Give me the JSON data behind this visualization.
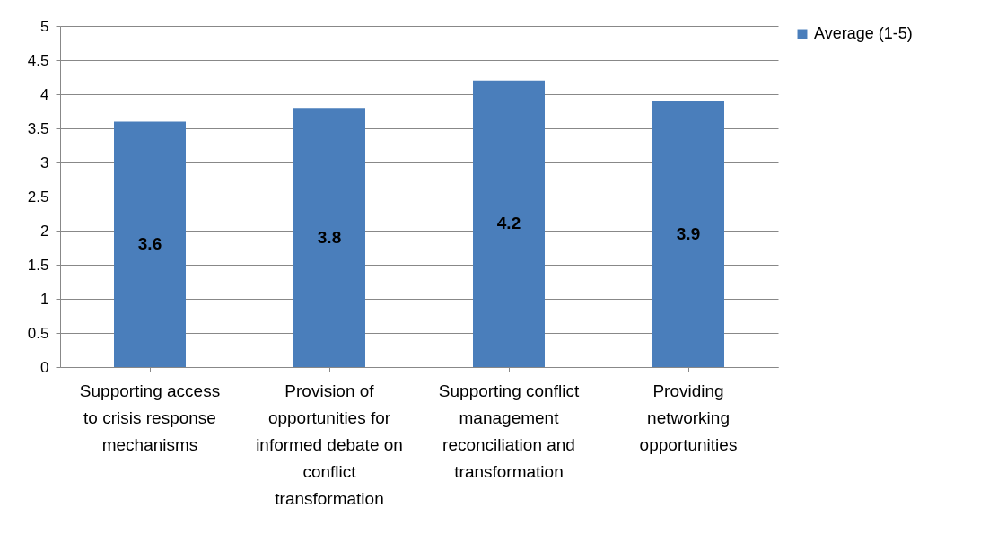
{
  "chart_data": {
    "type": "bar",
    "categories": [
      "Supporting access to crisis response mechanisms",
      "Provision of opportunities for informed debate on conflict transformation",
      "Supporting conflict management reconciliation and transformation",
      "Providing networking opportunities"
    ],
    "series": [
      {
        "name": "Average (1-5)",
        "color": "#4a7ebb",
        "values": [
          3.6,
          3.8,
          4.2,
          3.9
        ]
      }
    ],
    "ylim": [
      0,
      5
    ],
    "yticks": [
      0,
      0.5,
      1,
      1.5,
      2,
      2.5,
      3,
      3.5,
      4,
      4.5,
      5
    ],
    "grid": "y",
    "legend": "right",
    "data_labels": true
  }
}
